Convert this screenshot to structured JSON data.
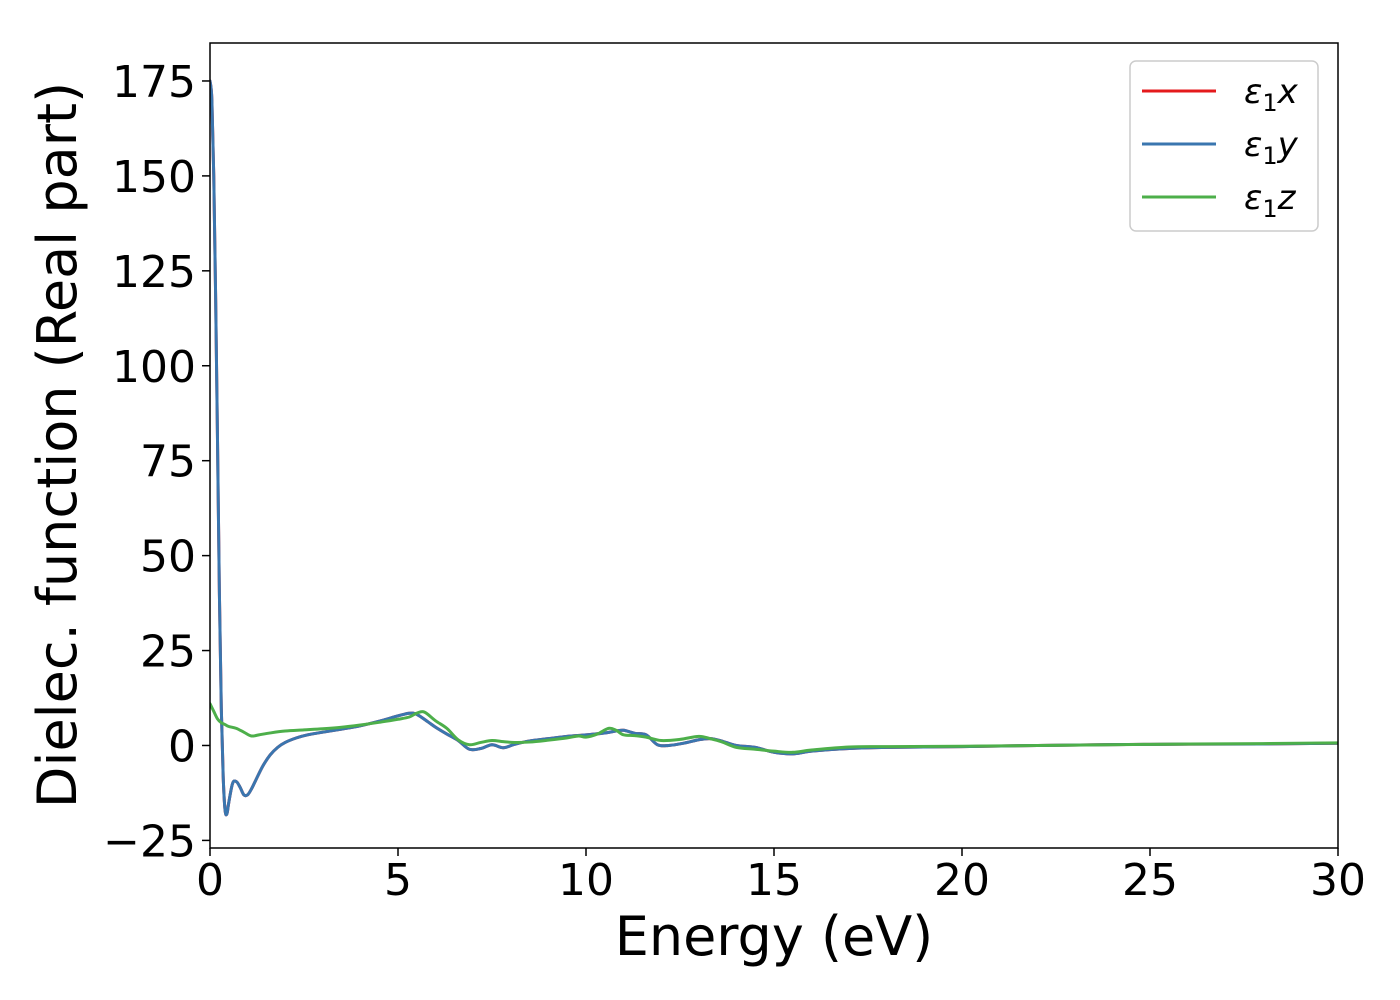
{
  "chart_data": {
    "type": "line",
    "title": "",
    "xlabel": "Energy (eV)",
    "ylabel": "Dielec. function (Real part)",
    "xlim": [
      0,
      30
    ],
    "ylim": [
      -27,
      185
    ],
    "xticks": [
      0,
      5,
      10,
      15,
      20,
      25,
      30
    ],
    "xtick_labels": [
      "0",
      "5",
      "10",
      "15",
      "20",
      "25",
      "30"
    ],
    "yticks": [
      -25,
      0,
      25,
      50,
      75,
      100,
      125,
      150,
      175
    ],
    "ytick_labels": [
      "−25",
      "0",
      "25",
      "50",
      "75",
      "100",
      "125",
      "150",
      "175"
    ],
    "grid": false,
    "legend_position": "top-right",
    "series": [
      {
        "name": "ε₁x",
        "legend_main": "ε",
        "legend_sub": "1",
        "legend_var": "x",
        "color": "#e41a1c",
        "x": [
          0.0,
          0.05,
          0.1,
          0.15,
          0.2,
          0.25,
          0.3,
          0.35,
          0.4,
          0.45,
          0.5,
          0.6,
          0.7,
          0.8,
          0.9,
          1.0,
          1.1,
          1.2,
          1.4,
          1.6,
          1.8,
          2.0,
          2.3,
          2.6,
          3.0,
          3.5,
          4.0,
          4.5,
          5.0,
          5.3,
          5.5,
          5.8,
          6.0,
          6.3,
          6.6,
          6.9,
          7.2,
          7.5,
          7.8,
          8.1,
          8.5,
          9.0,
          9.5,
          10.0,
          10.5,
          10.8,
          11.0,
          11.3,
          11.6,
          11.9,
          12.2,
          12.6,
          13.0,
          13.3,
          13.6,
          14.0,
          14.5,
          15.0,
          15.5,
          16.0,
          17.0,
          18.0,
          20.0,
          22.0,
          25.0,
          28.0,
          30.0
        ],
        "values": [
          175,
          170,
          150,
          118,
          80,
          40,
          10,
          -8,
          -17,
          -18,
          -15,
          -10,
          -9.5,
          -11,
          -13,
          -13,
          -11.5,
          -9.5,
          -5.5,
          -2.5,
          -0.5,
          0.8,
          2,
          2.8,
          3.5,
          4.3,
          5.2,
          6.4,
          7.8,
          8.5,
          8.2,
          6.2,
          4.8,
          3,
          1.3,
          -1,
          -0.8,
          0.2,
          -0.6,
          0.3,
          1.2,
          1.8,
          2.4,
          2.8,
          3.3,
          3.8,
          4,
          3.2,
          2.8,
          0.2,
          0,
          0.6,
          1.5,
          1.8,
          1.2,
          0,
          -0.5,
          -1.8,
          -2.2,
          -1.5,
          -0.8,
          -0.5,
          -0.3,
          0,
          0.3,
          0.4,
          0.6
        ]
      },
      {
        "name": "ε₁y",
        "legend_main": "ε",
        "legend_sub": "1",
        "legend_var": "y",
        "color": "#3a76af",
        "x": [
          0.0,
          0.05,
          0.1,
          0.15,
          0.2,
          0.25,
          0.3,
          0.35,
          0.4,
          0.45,
          0.5,
          0.6,
          0.7,
          0.8,
          0.9,
          1.0,
          1.1,
          1.2,
          1.4,
          1.6,
          1.8,
          2.0,
          2.3,
          2.6,
          3.0,
          3.5,
          4.0,
          4.5,
          5.0,
          5.3,
          5.5,
          5.8,
          6.0,
          6.3,
          6.6,
          6.9,
          7.2,
          7.5,
          7.8,
          8.1,
          8.5,
          9.0,
          9.5,
          10.0,
          10.5,
          10.8,
          11.0,
          11.3,
          11.6,
          11.9,
          12.2,
          12.6,
          13.0,
          13.3,
          13.6,
          14.0,
          14.5,
          15.0,
          15.5,
          16.0,
          17.0,
          18.0,
          20.0,
          22.0,
          25.0,
          28.0,
          30.0
        ],
        "values": [
          175,
          170,
          150,
          118,
          80,
          40,
          10,
          -8,
          -17,
          -18,
          -15,
          -10,
          -9.5,
          -11,
          -13,
          -13,
          -11.5,
          -9.5,
          -5.5,
          -2.5,
          -0.5,
          0.8,
          2,
          2.8,
          3.5,
          4.3,
          5.2,
          6.4,
          7.8,
          8.5,
          8.2,
          6.2,
          4.8,
          3,
          1.3,
          -1,
          -0.8,
          0.2,
          -0.6,
          0.3,
          1.2,
          1.8,
          2.4,
          2.8,
          3.3,
          3.8,
          4,
          3.2,
          2.8,
          0.2,
          0,
          0.6,
          1.5,
          1.8,
          1.2,
          0,
          -0.5,
          -1.8,
          -2.2,
          -1.5,
          -0.8,
          -0.5,
          -0.3,
          0,
          0.3,
          0.4,
          0.6
        ]
      },
      {
        "name": "ε₁z",
        "legend_main": "ε",
        "legend_sub": "1",
        "legend_var": "z",
        "color": "#4daf4a",
        "x": [
          0.0,
          0.1,
          0.2,
          0.3,
          0.4,
          0.5,
          0.7,
          0.9,
          1.1,
          1.3,
          1.6,
          2.0,
          2.5,
          3.0,
          3.5,
          4.0,
          4.5,
          5.0,
          5.3,
          5.5,
          5.7,
          6.0,
          6.3,
          6.6,
          6.9,
          7.2,
          7.5,
          7.8,
          8.1,
          8.5,
          9.0,
          9.5,
          9.8,
          10.0,
          10.3,
          10.6,
          10.8,
          11.0,
          11.3,
          11.6,
          12.0,
          12.5,
          13.0,
          13.3,
          13.6,
          14.0,
          14.5,
          15.0,
          15.5,
          16.0,
          17.0,
          18.0,
          20.0,
          22.0,
          25.0,
          28.0,
          30.0
        ],
        "values": [
          11,
          9,
          7,
          6,
          5.5,
          5,
          4.5,
          3.5,
          2.5,
          2.8,
          3.3,
          3.8,
          4.1,
          4.4,
          4.8,
          5.4,
          6.1,
          6.9,
          7.5,
          8.5,
          8.8,
          6.5,
          4.5,
          1.5,
          0.2,
          0.8,
          1.3,
          1,
          0.8,
          0.9,
          1.4,
          2,
          2.5,
          2.2,
          3,
          4.5,
          4,
          2.8,
          2.6,
          2.2,
          1.3,
          1.6,
          2.4,
          1.8,
          1,
          -0.5,
          -1,
          -1.5,
          -1.8,
          -1.2,
          -0.4,
          -0.3,
          -0.2,
          0,
          0.3,
          0.5,
          0.7
        ]
      }
    ]
  }
}
